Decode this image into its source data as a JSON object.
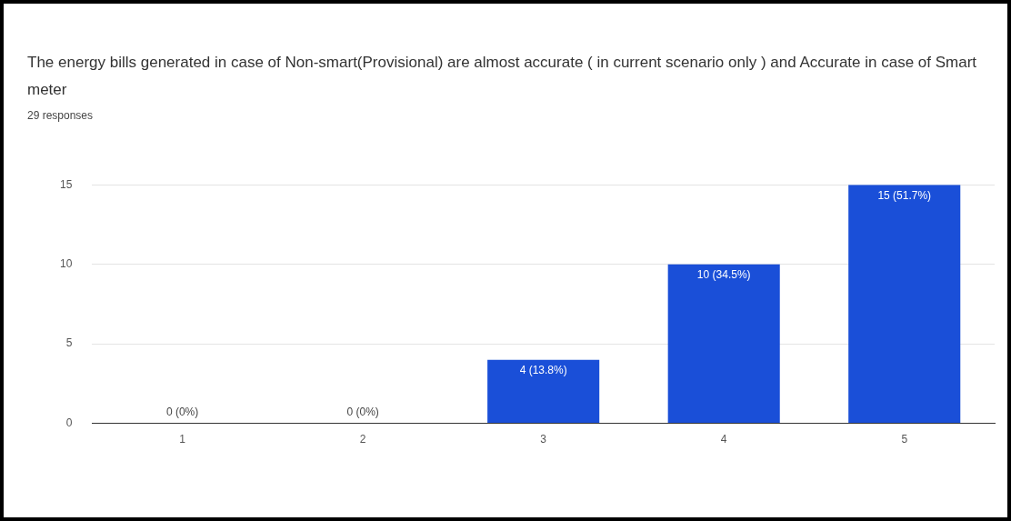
{
  "chart_data": {
    "type": "bar",
    "title": "The energy bills generated  in case of Non-smart(Provisional) are almost accurate ( in current scenario only ) and Accurate in case of Smart meter",
    "subtitle": "29 responses",
    "categories": [
      "1",
      "2",
      "3",
      "4",
      "5"
    ],
    "values": [
      0,
      0,
      4,
      10,
      15
    ],
    "value_labels": [
      "0 (0%)",
      "0 (0%)",
      "4 (13.8%)",
      "10 (34.5%)",
      "15 (51.7%)"
    ],
    "color": "#1a4fd8",
    "ylim": [
      0,
      15
    ],
    "yticks": [
      0,
      5,
      10,
      15
    ],
    "grid": "y",
    "legend": false
  }
}
